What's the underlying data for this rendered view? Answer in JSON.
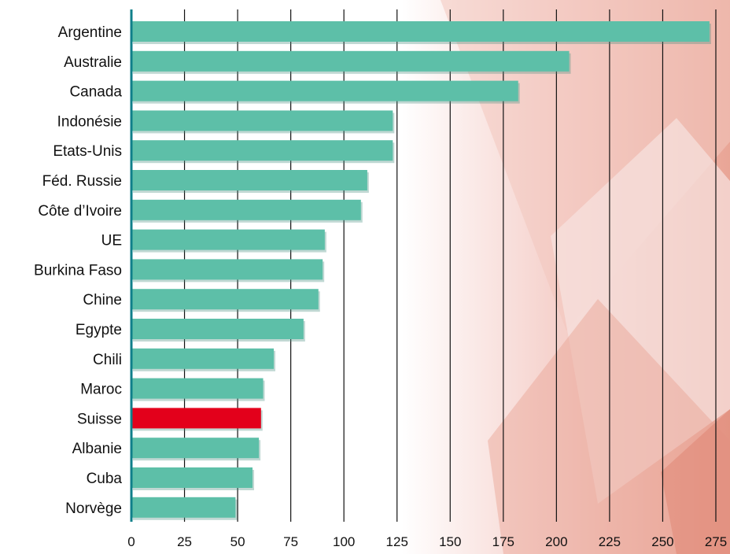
{
  "chart_data": {
    "type": "bar",
    "orientation": "horizontal",
    "categories": [
      "Argentine",
      "Australie",
      "Canada",
      "Indonésie",
      "Etats-Unis",
      "Féd. Russie",
      "Côte d’Ivoire",
      "UE",
      "Burkina Faso",
      "Chine",
      "Egypte",
      "Chili",
      "Maroc",
      "Suisse",
      "Albanie",
      "Cuba",
      "Norvège"
    ],
    "values": [
      272,
      206,
      182,
      123,
      123,
      111,
      108,
      91,
      90,
      88,
      81,
      67,
      62,
      61,
      60,
      57,
      49
    ],
    "highlight": {
      "category": "Suisse",
      "color": "#e3001b"
    },
    "bar_color": "#5dbfa8",
    "xlim": [
      0,
      275
    ],
    "xticks": [
      0,
      25,
      50,
      75,
      100,
      125,
      150,
      175,
      200,
      225,
      250,
      275
    ],
    "grid": "vertical",
    "title": "",
    "xlabel": "",
    "ylabel": ""
  }
}
